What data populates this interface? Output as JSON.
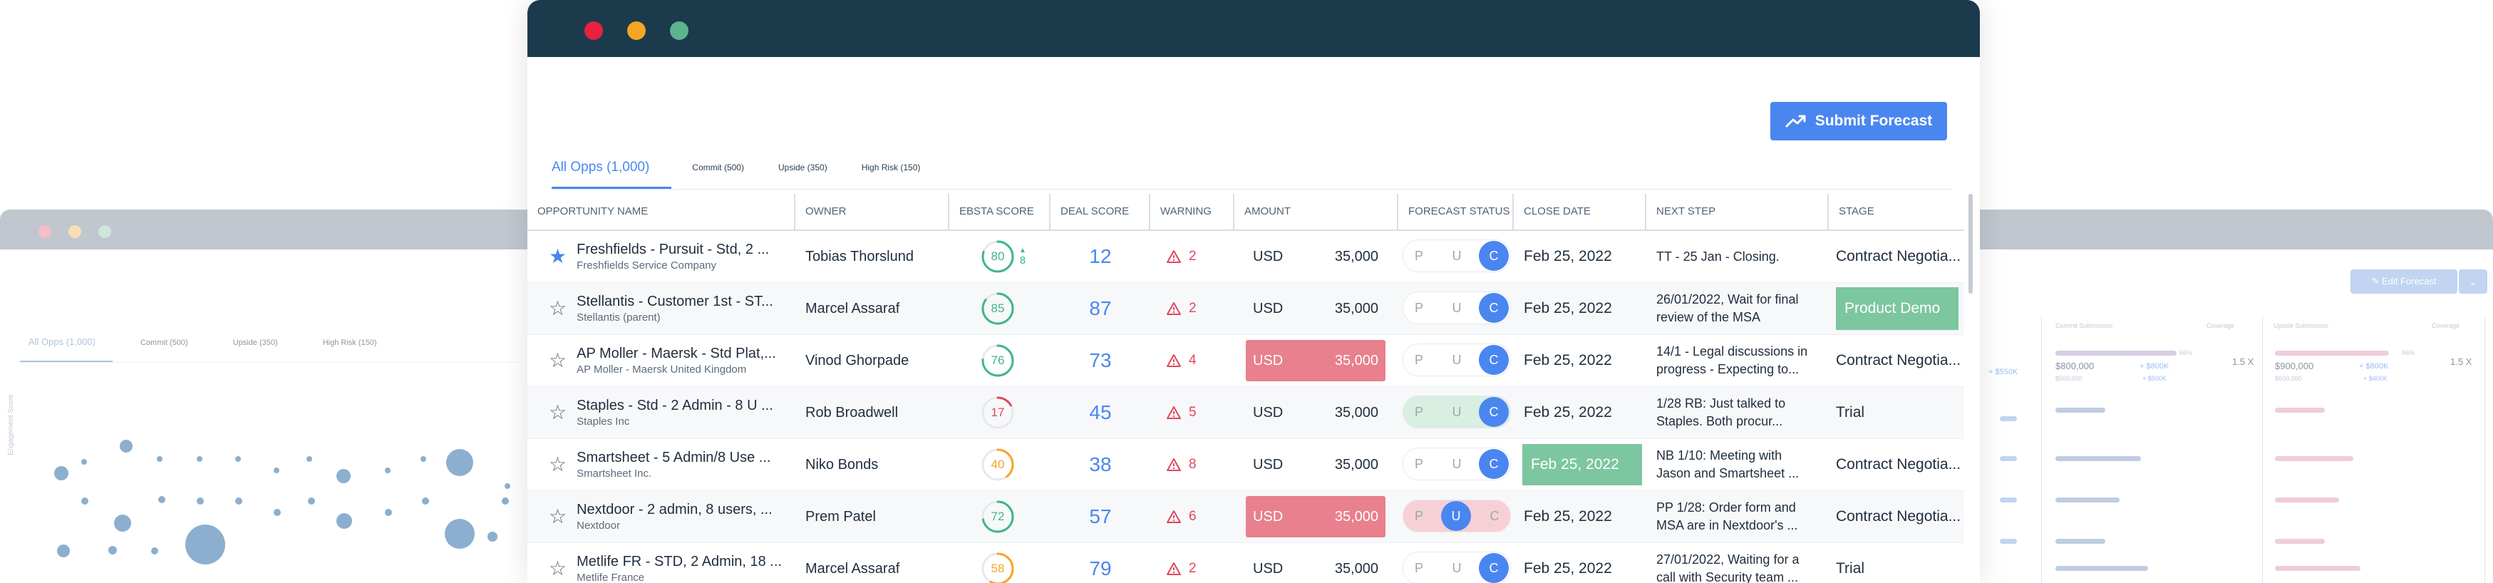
{
  "main": {
    "submit_label": "Submit Forecast",
    "tabs": [
      "All Opps (1,000)",
      "Commit (500)",
      "Upside (350)",
      "High Risk (150)"
    ],
    "columns": [
      "OPPORTUNITY NAME",
      "OWNER",
      "EBSTA SCORE",
      "DEAL SCORE",
      "WARNING",
      "AMOUNT",
      "FORECAST STATUS",
      "CLOSE DATE",
      "NEXT STEP",
      "STAGE"
    ],
    "forecast_letters": [
      "P",
      "U",
      "C"
    ],
    "rows": [
      {
        "name": "Freshfields - Pursuit - Std, 2 ...",
        "account": "Freshfields Service Company",
        "owner": "Tobias Thorslund",
        "ebsta": "80",
        "ebsta_delta": "8",
        "ebsta_color": "#3fb58a",
        "ebsta_pct": 0.8,
        "deal": "12",
        "warn": "2",
        "currency": "USD",
        "amount": "35,000",
        "amount_risk": false,
        "forecast": "C",
        "close": "Feb 25, 2022",
        "close_highlight": false,
        "next1": "TT - 25 Jan - Closing.",
        "next2": "",
        "stage": "Contract Negotia...",
        "stage_highlight": false,
        "starred": true
      },
      {
        "name": "Stellantis - Customer 1st - ST...",
        "account": "Stellantis (parent)",
        "owner": "Marcel Assaraf",
        "ebsta": "85",
        "ebsta_delta": "",
        "ebsta_color": "#3fb58a",
        "ebsta_pct": 0.85,
        "deal": "87",
        "warn": "2",
        "currency": "USD",
        "amount": "35,000",
        "amount_risk": false,
        "forecast": "C",
        "close": "Feb 25, 2022",
        "close_highlight": false,
        "next1": "26/01/2022, Wait for final",
        "next2": "review of the MSA",
        "stage": "Product Demo",
        "stage_highlight": true,
        "starred": false
      },
      {
        "name": "AP Moller - Maersk - Std Plat,...",
        "account": "AP Moller - Maersk United Kingdom",
        "owner": "Vinod Ghorpade",
        "ebsta": "76",
        "ebsta_delta": "",
        "ebsta_color": "#3fb58a",
        "ebsta_pct": 0.76,
        "deal": "73",
        "warn": "4",
        "currency": "USD",
        "amount": "35,000",
        "amount_risk": true,
        "forecast": "C",
        "close": "Feb 25, 2022",
        "close_highlight": false,
        "next1": "14/1 - Legal discussions in",
        "next2": "progress - Expecting to...",
        "stage": "Contract Negotia...",
        "stage_highlight": false,
        "starred": false
      },
      {
        "name": "Staples - Std - 2 Admin - 8 U ...",
        "account": "Staples Inc",
        "owner": "Rob Broadwell",
        "ebsta": "17",
        "ebsta_delta": "",
        "ebsta_color": "#e0475c",
        "ebsta_pct": 0.17,
        "deal": "45",
        "warn": "5",
        "currency": "USD",
        "amount": "35,000",
        "amount_risk": false,
        "forecast": "C",
        "close": "Feb 25, 2022",
        "close_highlight": false,
        "next1": "1/28 RB: Just talked to",
        "next2": "Staples. Both procur...",
        "stage": "Trial",
        "stage_highlight": false,
        "starred": false
      },
      {
        "name": "Smartsheet - 5 Admin/8 Use ...",
        "account": "Smartsheet Inc.",
        "owner": "Niko Bonds",
        "ebsta": "40",
        "ebsta_delta": "",
        "ebsta_color": "#f5a623",
        "ebsta_pct": 0.4,
        "deal": "38",
        "warn": "8",
        "currency": "USD",
        "amount": "35,000",
        "amount_risk": false,
        "forecast": "C",
        "close": "Feb 25, 2022",
        "close_highlight": true,
        "next1": "NB 1/10: Meeting with",
        "next2": "Jason and Smartsheet ...",
        "stage": "Contract Negotia...",
        "stage_highlight": false,
        "starred": false
      },
      {
        "name": "Nextdoor - 2 admin, 8 users, ...",
        "account": "Nextdoor",
        "owner": "Prem Patel",
        "ebsta": "72",
        "ebsta_delta": "",
        "ebsta_color": "#3fb58a",
        "ebsta_pct": 0.72,
        "deal": "57",
        "warn": "6",
        "currency": "USD",
        "amount": "35,000",
        "amount_risk": true,
        "forecast": "U",
        "close": "Feb 25, 2022",
        "close_highlight": false,
        "next1": "PP 1/28: Order form and",
        "next2": "MSA are in Nextdoor's ...",
        "stage": "Contract Negotia...",
        "stage_highlight": false,
        "starred": false
      },
      {
        "name": "Metlife FR - STD, 2 Admin, 18 ...",
        "account": "Metlife France",
        "owner": "Marcel Assaraf",
        "ebsta": "58",
        "ebsta_delta": "",
        "ebsta_color": "#f5a623",
        "ebsta_pct": 0.58,
        "deal": "79",
        "warn": "2",
        "currency": "USD",
        "amount": "35,000",
        "amount_risk": false,
        "forecast": "C",
        "close": "Feb 25, 2022",
        "close_highlight": false,
        "next1": "27/01/2022, Waiting for a",
        "next2": "call with Security team ...",
        "stage": "Trial",
        "stage_highlight": false,
        "starred": false
      }
    ]
  },
  "background": {
    "tabs": [
      "All Opps (1,000)",
      "Commit (500)",
      "Upside (350)",
      "High Risk (150)"
    ],
    "edit_label": "Edit Forecast",
    "y_axis_label": "Engagement Score",
    "commit_header": "Commit Submission",
    "upside_header": "Upside Submission",
    "coverage_header": "Coverage",
    "commit_value": "$800,000",
    "commit_sub": "$500,000",
    "commit_delta": "+ $800K",
    "commit_delta_sub": "+ $500K",
    "commit_pct": "66%",
    "upside_value": "$900,000",
    "upside_sub": "$600,000",
    "upside_delta": "+ $800K",
    "upside_delta_sub": "+ $400K",
    "upside_pct": "96%",
    "coverage_1": "1.5 X",
    "coverage_2": "1.5 X",
    "left_delta": "+ $550K"
  },
  "colors": {
    "titlebar": "#1b3a4c",
    "accent": "#4a86f0",
    "risk": "#e8808d",
    "highlight_green": "#7cc6a0",
    "warning": "#e0475c"
  }
}
